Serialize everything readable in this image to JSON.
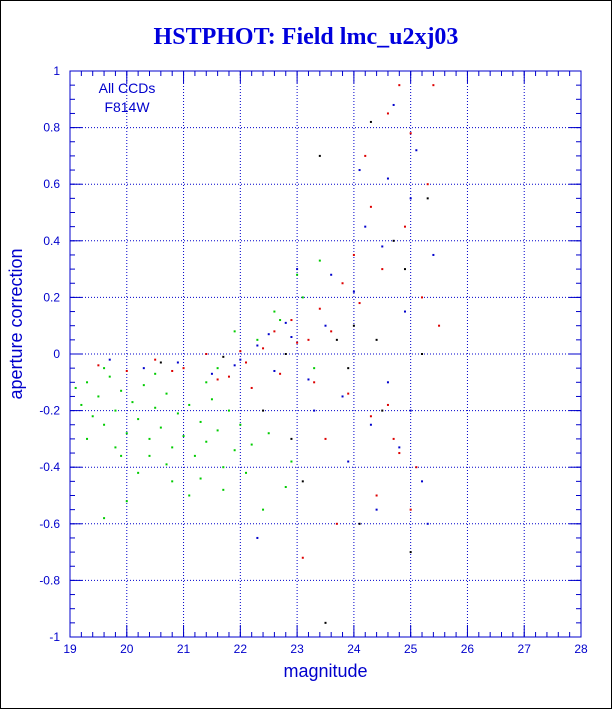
{
  "chart_data": {
    "type": "scatter",
    "title": "HSTPHOT: Field lmc_u2xj03",
    "xlabel": "magnitude",
    "ylabel": "aperture correction",
    "xlim": [
      19,
      28
    ],
    "ylim": [
      -1,
      1
    ],
    "x_ticks": [
      "19",
      "20",
      "21",
      "22",
      "23",
      "24",
      "25",
      "26",
      "27",
      "28"
    ],
    "y_ticks": [
      "-1",
      "-0.8",
      "-0.6",
      "-0.4",
      "-0.2",
      "0",
      "0.2",
      "0.4",
      "0.6",
      "0.8",
      "1"
    ],
    "grid": true,
    "legend_lines": [
      "All CCDs",
      "F814W"
    ],
    "legend_placement": "top-left",
    "colors": {
      "axis": "#0000cc",
      "grid": "#0000cc",
      "text": "#0000dd"
    },
    "series": [
      {
        "color": "#00cc00",
        "points": [
          [
            19.1,
            -0.12
          ],
          [
            19.2,
            -0.18
          ],
          [
            19.3,
            -0.1
          ],
          [
            19.4,
            -0.22
          ],
          [
            19.5,
            -0.15
          ],
          [
            19.6,
            -0.25
          ],
          [
            19.7,
            -0.08
          ],
          [
            19.8,
            -0.2
          ],
          [
            19.9,
            -0.13
          ],
          [
            20.0,
            -0.28
          ],
          [
            20.1,
            -0.17
          ],
          [
            20.2,
            -0.23
          ],
          [
            20.3,
            -0.11
          ],
          [
            20.4,
            -0.3
          ],
          [
            20.5,
            -0.19
          ],
          [
            20.6,
            -0.26
          ],
          [
            20.7,
            -0.14
          ],
          [
            20.8,
            -0.33
          ],
          [
            20.9,
            -0.21
          ],
          [
            21.0,
            -0.29
          ],
          [
            21.1,
            -0.18
          ],
          [
            21.2,
            -0.36
          ],
          [
            21.3,
            -0.24
          ],
          [
            21.4,
            -0.31
          ],
          [
            21.5,
            -0.16
          ],
          [
            21.6,
            -0.27
          ],
          [
            21.7,
            -0.4
          ],
          [
            21.8,
            -0.2
          ],
          [
            21.9,
            -0.34
          ],
          [
            22.0,
            -0.25
          ],
          [
            19.3,
            -0.3
          ],
          [
            19.6,
            -0.05
          ],
          [
            19.9,
            -0.36
          ],
          [
            20.2,
            -0.42
          ],
          [
            20.5,
            -0.07
          ],
          [
            20.8,
            -0.45
          ],
          [
            21.1,
            -0.5
          ],
          [
            21.4,
            -0.1
          ],
          [
            21.7,
            -0.48
          ],
          [
            22.1,
            -0.42
          ],
          [
            22.3,
            0.05
          ],
          [
            22.5,
            -0.28
          ],
          [
            22.7,
            0.12
          ],
          [
            22.9,
            -0.38
          ],
          [
            23.1,
            0.2
          ],
          [
            23.3,
            -0.05
          ],
          [
            22.4,
            -0.55
          ],
          [
            21.9,
            0.08
          ],
          [
            19.6,
            -0.58
          ],
          [
            20.0,
            -0.52
          ],
          [
            22.6,
            0.15
          ],
          [
            23.0,
            0.28
          ],
          [
            23.4,
            0.33
          ],
          [
            22.8,
            -0.47
          ],
          [
            21.3,
            -0.44
          ],
          [
            20.7,
            -0.39
          ],
          [
            22.2,
            -0.32
          ],
          [
            19.8,
            -0.33
          ],
          [
            20.4,
            -0.36
          ],
          [
            21.6,
            -0.05
          ]
        ]
      },
      {
        "color": "#dd0000",
        "points": [
          [
            19.5,
            -0.04
          ],
          [
            20.0,
            -0.06
          ],
          [
            20.5,
            -0.02
          ],
          [
            21.0,
            -0.05
          ],
          [
            21.4,
            0.0
          ],
          [
            21.8,
            -0.08
          ],
          [
            22.1,
            -0.03
          ],
          [
            22.4,
            0.02
          ],
          [
            22.7,
            -0.07
          ],
          [
            23.0,
            0.04
          ],
          [
            23.3,
            -0.1
          ],
          [
            23.6,
            0.08
          ],
          [
            23.9,
            -0.14
          ],
          [
            24.1,
            0.18
          ],
          [
            24.3,
            -0.22
          ],
          [
            24.5,
            0.3
          ],
          [
            24.7,
            -0.3
          ],
          [
            24.9,
            0.45
          ],
          [
            25.1,
            -0.4
          ],
          [
            25.3,
            0.6
          ],
          [
            24.2,
            0.7
          ],
          [
            24.6,
            0.85
          ],
          [
            25.0,
            -0.55
          ],
          [
            25.4,
            0.95
          ],
          [
            24.4,
            -0.5
          ],
          [
            23.8,
            0.25
          ],
          [
            23.5,
            -0.3
          ],
          [
            22.9,
            0.12
          ],
          [
            24.8,
            0.95
          ],
          [
            25.2,
            0.2
          ],
          [
            23.7,
            -0.6
          ],
          [
            24.0,
            0.35
          ],
          [
            22.2,
            -0.12
          ],
          [
            21.6,
            -0.09
          ],
          [
            24.6,
            -0.18
          ],
          [
            25.5,
            0.1
          ],
          [
            23.2,
            0.05
          ],
          [
            22.6,
            0.08
          ],
          [
            24.3,
            0.52
          ],
          [
            25.0,
            0.78
          ],
          [
            23.1,
            -0.72
          ],
          [
            24.8,
            -0.35
          ],
          [
            20.8,
            -0.06
          ],
          [
            22.0,
            0.01
          ],
          [
            23.4,
            0.16
          ]
        ]
      },
      {
        "color": "#0000cc",
        "points": [
          [
            19.7,
            -0.02
          ],
          [
            20.3,
            -0.05
          ],
          [
            20.9,
            -0.03
          ],
          [
            21.5,
            -0.07
          ],
          [
            22.0,
            -0.02
          ],
          [
            22.3,
            0.03
          ],
          [
            22.6,
            -0.06
          ],
          [
            22.9,
            0.06
          ],
          [
            23.2,
            -0.09
          ],
          [
            23.5,
            0.1
          ],
          [
            23.8,
            -0.15
          ],
          [
            24.0,
            0.22
          ],
          [
            24.3,
            -0.25
          ],
          [
            24.5,
            0.38
          ],
          [
            24.8,
            -0.33
          ],
          [
            25.0,
            0.55
          ],
          [
            25.2,
            -0.45
          ],
          [
            24.1,
            0.65
          ],
          [
            24.7,
            0.88
          ],
          [
            25.3,
            -0.6
          ],
          [
            23.6,
            0.28
          ],
          [
            24.4,
            -0.55
          ],
          [
            22.8,
            0.11
          ],
          [
            23.9,
            -0.38
          ],
          [
            24.9,
            0.15
          ],
          [
            25.1,
            0.72
          ],
          [
            22.3,
            -0.65
          ],
          [
            23.0,
            0.3
          ],
          [
            24.2,
            0.45
          ],
          [
            24.6,
            -0.1
          ],
          [
            25.4,
            0.35
          ],
          [
            23.3,
            -0.2
          ],
          [
            22.5,
            0.07
          ],
          [
            21.9,
            -0.04
          ],
          [
            24.6,
            0.62
          ],
          [
            25.0,
            -0.2
          ]
        ]
      },
      {
        "color": "#000000",
        "points": [
          [
            20.6,
            -0.03
          ],
          [
            21.7,
            -0.01
          ],
          [
            22.8,
            0.0
          ],
          [
            23.4,
            0.7
          ],
          [
            23.7,
            0.05
          ],
          [
            24.0,
            0.1
          ],
          [
            24.5,
            -0.2
          ],
          [
            24.9,
            0.3
          ],
          [
            25.0,
            -0.7
          ],
          [
            23.1,
            -0.45
          ],
          [
            24.3,
            0.82
          ],
          [
            25.2,
            0.0
          ],
          [
            22.4,
            -0.2
          ],
          [
            23.9,
            -0.05
          ],
          [
            24.7,
            0.4
          ],
          [
            23.5,
            -0.95
          ],
          [
            24.1,
            -0.6
          ],
          [
            25.3,
            0.55
          ],
          [
            22.9,
            -0.3
          ],
          [
            24.4,
            0.05
          ]
        ]
      }
    ]
  }
}
